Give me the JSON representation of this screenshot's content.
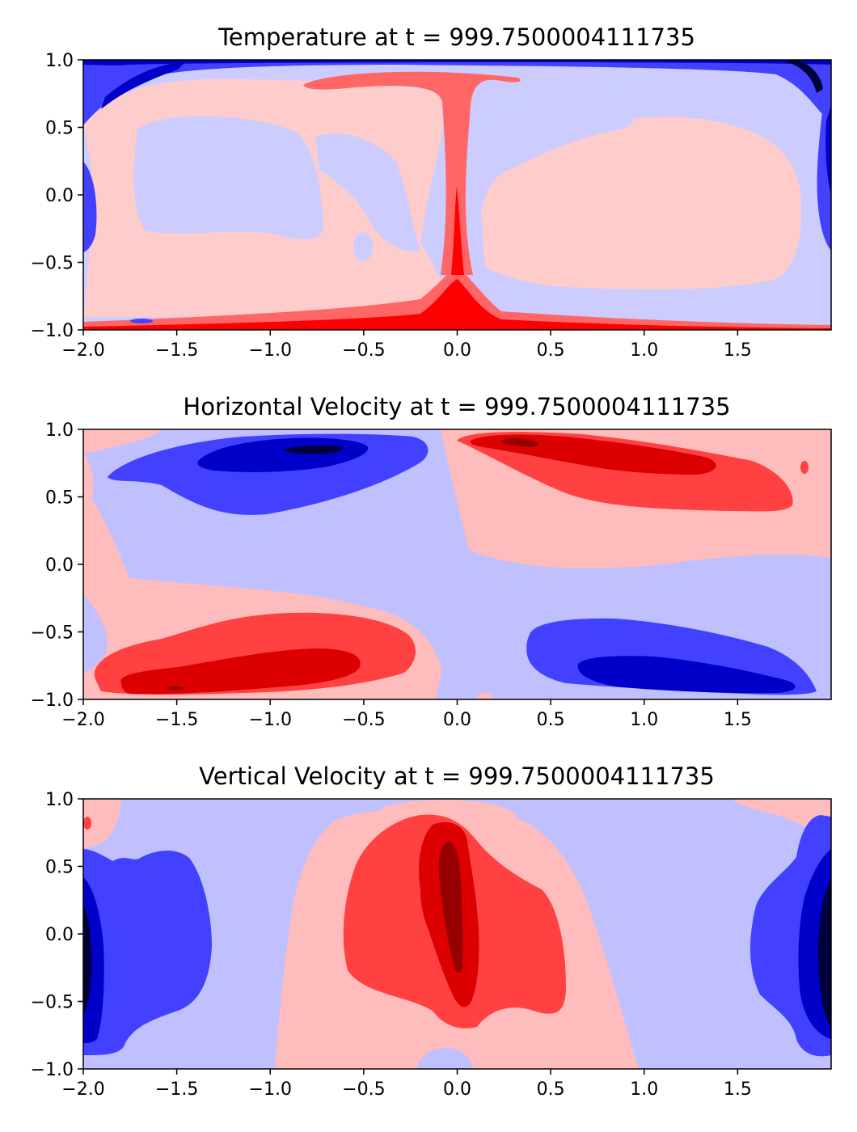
{
  "chart_data": [
    {
      "type": "heatmap",
      "title": "Temperature at t = 999.7500004111735",
      "xlim": [
        -2.0,
        2.0
      ],
      "ylim": [
        -1.0,
        1.0
      ],
      "xticks": [
        -2.0,
        -1.5,
        -1.0,
        -0.5,
        0.0,
        0.5,
        1.0,
        1.5
      ],
      "yticks": [
        -1.0,
        -0.5,
        0.0,
        0.5,
        1.0
      ],
      "xtick_labels": [
        "−2.0",
        "−1.5",
        "−1.0",
        "−0.5",
        "0.0",
        "0.5",
        "1.0",
        "1.5"
      ],
      "ytick_labels": [
        "−1.0",
        "−0.5",
        "0.0",
        "0.5",
        "1.0"
      ],
      "colormap": "seismic (blue-white-red)",
      "grid": false,
      "features": [
        {
          "kind": "rising hot plume",
          "x": 0.0,
          "y_range": [
            -1.0,
            0.85
          ],
          "sign": "positive"
        },
        {
          "kind": "hot bottom boundary layer",
          "y": -1.0,
          "x_range": [
            -2.0,
            2.0
          ],
          "sign": "positive"
        },
        {
          "kind": "cold top boundary layer",
          "y": 1.0,
          "x_range": [
            -2.0,
            2.0
          ],
          "sign": "negative"
        },
        {
          "kind": "cold side walls",
          "x": [
            -2.0,
            2.0
          ],
          "sign": "negative"
        }
      ]
    },
    {
      "type": "heatmap",
      "title": "Horizontal Velocity at t = 999.7500004111735",
      "xlim": [
        -2.0,
        2.0
      ],
      "ylim": [
        -1.0,
        1.0
      ],
      "xticks": [
        -2.0,
        -1.5,
        -1.0,
        -0.5,
        0.0,
        0.5,
        1.0,
        1.5
      ],
      "yticks": [
        -1.0,
        -0.5,
        0.0,
        0.5,
        1.0
      ],
      "xtick_labels": [
        "−2.0",
        "−1.5",
        "−1.0",
        "−0.5",
        "0.0",
        "0.5",
        "1.0",
        "1.5"
      ],
      "ytick_labels": [
        "−1.0",
        "−0.5",
        "0.0",
        "0.5",
        "1.0"
      ],
      "colormap": "seismic (blue-white-red)",
      "grid": false,
      "features": [
        {
          "kind": "negative jet",
          "center": [
            -0.9,
            0.8
          ],
          "sign": "negative"
        },
        {
          "kind": "positive jet",
          "center": [
            0.6,
            0.8
          ],
          "sign": "positive"
        },
        {
          "kind": "positive jet",
          "center": [
            -1.0,
            -0.8
          ],
          "sign": "positive"
        },
        {
          "kind": "negative jet",
          "center": [
            1.1,
            -0.8
          ],
          "sign": "negative"
        }
      ]
    },
    {
      "type": "heatmap",
      "title": "Vertical Velocity at t = 999.7500004111735",
      "xlim": [
        -2.0,
        2.0
      ],
      "ylim": [
        -1.0,
        1.0
      ],
      "xticks": [
        -2.0,
        -1.5,
        -1.0,
        -0.5,
        0.0,
        0.5,
        1.0,
        1.5
      ],
      "yticks": [
        -1.0,
        -0.5,
        0.0,
        0.5,
        1.0
      ],
      "xtick_labels": [
        "−2.0",
        "−1.5",
        "−1.0",
        "−0.5",
        "0.0",
        "0.5",
        "1.0",
        "1.5"
      ],
      "ytick_labels": [
        "−1.0",
        "−0.5",
        "0.0",
        "0.5",
        "1.0"
      ],
      "colormap": "seismic (blue-white-red)",
      "grid": false,
      "features": [
        {
          "kind": "central updraft",
          "center": [
            0.0,
            0.1
          ],
          "sign": "positive"
        },
        {
          "kind": "left wall downdraft",
          "center": [
            -1.9,
            -0.1
          ],
          "sign": "negative"
        },
        {
          "kind": "right wall downdraft",
          "center": [
            1.9,
            0.0
          ],
          "sign": "negative"
        }
      ]
    }
  ],
  "colors": {
    "neg4": "#00003a",
    "neg3": "#0000c8",
    "neg2": "#4141ff",
    "neg1": "#c0c0ff",
    "pos1": "#ffbcbc",
    "pos2": "#ff4141",
    "pos3": "#dc0000",
    "pos4": "#960000",
    "temp_neg1": "#ccccff",
    "temp_pos1": "#ffcccc",
    "temp_pos2": "#ff6666"
  }
}
